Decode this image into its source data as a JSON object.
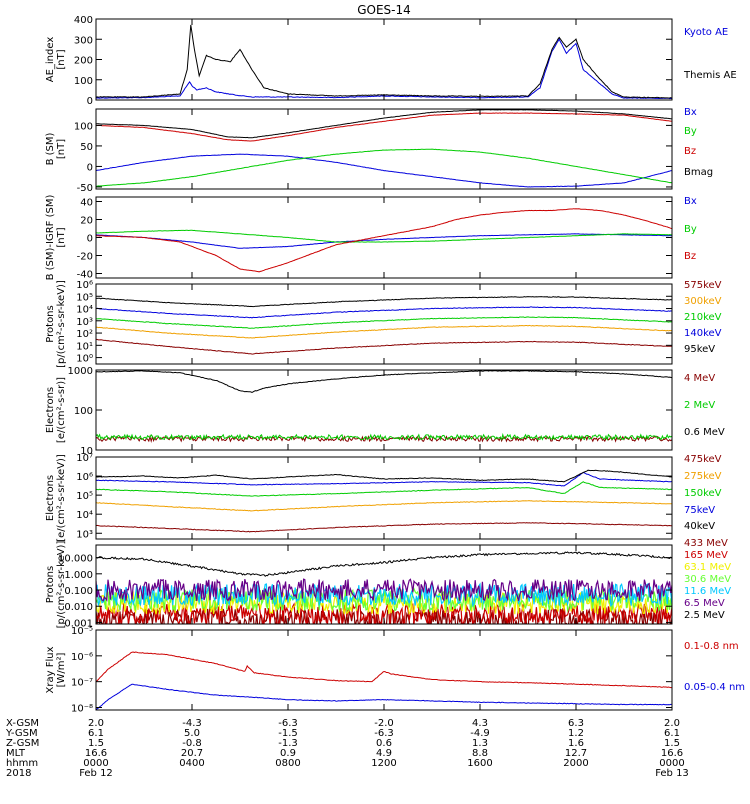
{
  "figure_title": "GOES-14",
  "colors": {
    "black": "#000000",
    "blue": "#0000dd",
    "red": "#cc0000",
    "green": "#00cc00",
    "orange": "#f0a000",
    "darkred": "#880000",
    "cyan": "#00c8ff",
    "yellow": "#f0f000",
    "purple": "#660088",
    "ltgreen": "#66ff33"
  },
  "chart_data": [
    {
      "type": "line",
      "ylabel": "AE_index [nT]",
      "ylim": [
        0,
        400
      ],
      "yscale": "linear",
      "yticks": [
        0,
        100,
        200,
        300,
        400
      ],
      "ytick_labels": [
        "0",
        "100",
        "200",
        "300",
        "400"
      ],
      "series": [
        {
          "name": "Kyoto AE",
          "color": "#0000dd",
          "x": [
            0,
            2,
            3.5,
            3.9,
            4.0,
            4.2,
            4.6,
            5.0,
            5.8,
            6.5,
            8,
            10,
            12,
            14,
            16,
            18,
            18.5,
            19.0,
            19.3,
            19.6,
            20.0,
            20.3,
            20.8,
            21.5,
            22,
            24
          ],
          "y": [
            10,
            12,
            20,
            90,
            70,
            50,
            60,
            40,
            25,
            15,
            15,
            12,
            20,
            15,
            12,
            15,
            60,
            240,
            300,
            230,
            280,
            150,
            100,
            30,
            10,
            8
          ]
        },
        {
          "name": "Themis AE",
          "color": "#000000",
          "x": [
            0,
            2,
            3.5,
            3.8,
            3.95,
            4.1,
            4.3,
            4.6,
            5.0,
            5.6,
            6.0,
            6.5,
            7,
            8,
            10,
            12,
            14,
            16,
            18,
            18.5,
            19.0,
            19.3,
            19.6,
            20.0,
            20.3,
            20.8,
            21.5,
            22,
            24
          ],
          "y": [
            15,
            15,
            30,
            150,
            370,
            250,
            120,
            220,
            200,
            190,
            250,
            150,
            60,
            30,
            20,
            25,
            20,
            18,
            20,
            80,
            250,
            310,
            260,
            300,
            200,
            130,
            40,
            15,
            10
          ]
        }
      ]
    },
    {
      "type": "line",
      "ylabel": "B (SM) [nT]",
      "ylim": [
        -55,
        140
      ],
      "yscale": "linear",
      "yticks": [
        -50,
        0,
        50,
        100
      ],
      "ytick_labels": [
        "-50",
        "0",
        "50",
        "100"
      ],
      "series": [
        {
          "name": "Bx",
          "color": "#0000dd",
          "x": [
            0,
            2,
            4,
            6,
            8,
            10,
            12,
            14,
            16,
            18,
            20,
            22,
            24
          ],
          "y": [
            -10,
            10,
            25,
            30,
            25,
            10,
            -10,
            -25,
            -40,
            -50,
            -48,
            -40,
            -10
          ]
        },
        {
          "name": "By",
          "color": "#00cc00",
          "x": [
            0,
            2,
            4,
            6,
            8,
            10,
            12,
            14,
            16,
            18,
            20,
            22,
            24
          ],
          "y": [
            -48,
            -40,
            -25,
            -5,
            15,
            30,
            40,
            42,
            35,
            20,
            0,
            -20,
            -40
          ]
        },
        {
          "name": "Bz",
          "color": "#cc0000",
          "x": [
            0,
            2,
            4,
            5.5,
            6.5,
            8,
            10,
            12,
            14,
            16,
            18,
            20,
            22,
            24
          ],
          "y": [
            100,
            95,
            80,
            65,
            62,
            75,
            95,
            110,
            125,
            130,
            130,
            128,
            125,
            110
          ]
        },
        {
          "name": "Bmag",
          "color": "#000000",
          "x": [
            0,
            2,
            4,
            5.5,
            6.5,
            8,
            10,
            12,
            14,
            16,
            18,
            20,
            22,
            24
          ],
          "y": [
            104,
            100,
            90,
            72,
            70,
            82,
            100,
            118,
            132,
            138,
            138,
            135,
            128,
            116
          ]
        }
      ]
    },
    {
      "type": "line",
      "ylabel": "B (SM)-IGRF (SM) [nT]",
      "ylim": [
        -45,
        45
      ],
      "yscale": "linear",
      "yticks": [
        -40,
        -20,
        0,
        20,
        40
      ],
      "ytick_labels": [
        "-40",
        "-20",
        "0",
        "20",
        "40"
      ],
      "series": [
        {
          "name": "Bx",
          "color": "#0000dd",
          "x": [
            0,
            2,
            4,
            6,
            8,
            10,
            12,
            14,
            16,
            18,
            20,
            22,
            24
          ],
          "y": [
            3,
            0,
            -5,
            -12,
            -10,
            -5,
            -2,
            0,
            2,
            3,
            4,
            3,
            2
          ]
        },
        {
          "name": "By",
          "color": "#00cc00",
          "x": [
            0,
            2,
            4,
            6,
            8,
            10,
            12,
            14,
            16,
            18,
            20,
            22,
            24
          ],
          "y": [
            5,
            7,
            8,
            4,
            0,
            -5,
            -5,
            -4,
            -2,
            0,
            2,
            4,
            3
          ]
        },
        {
          "name": "Bz",
          "color": "#cc0000",
          "x": [
            0,
            2,
            3.5,
            5,
            6.0,
            6.8,
            8,
            10,
            12,
            14,
            15,
            16,
            17,
            18,
            19,
            20,
            21,
            22,
            23,
            24
          ],
          "y": [
            2,
            0,
            -5,
            -20,
            -35,
            -38,
            -28,
            -8,
            2,
            12,
            20,
            25,
            28,
            30,
            30,
            32,
            30,
            25,
            18,
            10
          ]
        }
      ]
    },
    {
      "type": "line",
      "ylabel": "Protons [p/(cm²-s-sr-keV)]",
      "ylim": [
        0.3,
        1000000
      ],
      "yscale": "log",
      "yticks": [
        1,
        10,
        100,
        1000,
        10000,
        100000,
        1000000
      ],
      "ytick_labels": [
        "10⁰",
        "10¹",
        "10²",
        "10³",
        "10⁴",
        "10⁵",
        "10⁶"
      ],
      "series": [
        {
          "name": "575keV",
          "color": "#880000",
          "x": [
            0,
            3,
            6.5,
            10,
            14,
            18,
            20,
            24
          ],
          "y": [
            30,
            8,
            2,
            6,
            15,
            20,
            18,
            8
          ]
        },
        {
          "name": "300keV",
          "color": "#f0a000",
          "x": [
            0,
            3,
            6.5,
            10,
            14,
            18,
            20,
            24
          ],
          "y": [
            300,
            100,
            40,
            120,
            300,
            400,
            350,
            150
          ]
        },
        {
          "name": "210keV",
          "color": "#00cc00",
          "x": [
            0,
            3,
            6.5,
            10,
            14,
            18,
            20,
            24
          ],
          "y": [
            1500,
            600,
            250,
            700,
            1500,
            2000,
            1800,
            800
          ]
        },
        {
          "name": "140keV",
          "color": "#0000dd",
          "x": [
            0,
            3,
            6.5,
            10,
            14,
            18,
            20,
            24
          ],
          "y": [
            10000,
            4000,
            1800,
            5000,
            10000,
            13000,
            12000,
            6000
          ]
        },
        {
          "name": "95keV",
          "color": "#000000",
          "x": [
            0,
            3,
            6.5,
            10,
            14,
            18,
            20,
            24
          ],
          "y": [
            70000,
            30000,
            15000,
            35000,
            70000,
            90000,
            85000,
            50000
          ]
        }
      ]
    },
    {
      "type": "line",
      "ylabel": "Electrons [e/(cm²-s-sr)]",
      "ylim": [
        10,
        1000
      ],
      "yscale": "log",
      "yticks": [
        10,
        100,
        1000
      ],
      "ytick_labels": [
        "10",
        "100",
        "1000"
      ],
      "series": [
        {
          "name": "4 MeV",
          "color": "#880000",
          "x": [
            0,
            24
          ],
          "y": [
            19,
            19
          ]
        },
        {
          "name": "2 MeV",
          "color": "#00cc00",
          "x": [
            0,
            24
          ],
          "y": [
            21,
            21
          ]
        },
        {
          "name": "0.6 MeV",
          "color": "#000000",
          "x": [
            0,
            2,
            3.5,
            5,
            6.0,
            6.5,
            7,
            8,
            10,
            12,
            14,
            16,
            18,
            20,
            22,
            24
          ],
          "y": [
            900,
            950,
            850,
            550,
            300,
            280,
            350,
            450,
            600,
            750,
            850,
            950,
            950,
            900,
            800,
            650
          ]
        }
      ]
    },
    {
      "type": "line",
      "ylabel": "Electrons [e/(cm²-s-sr-keV)]",
      "ylim": [
        500,
        10000000
      ],
      "yscale": "log",
      "yticks": [
        1000,
        10000,
        100000,
        1000000,
        10000000
      ],
      "ytick_labels": [
        "10³",
        "10⁴",
        "10⁵",
        "10⁶",
        "10⁷"
      ],
      "series": [
        {
          "name": "475keV",
          "color": "#880000",
          "x": [
            0,
            3,
            6.5,
            10,
            14,
            18,
            20,
            24
          ],
          "y": [
            2500,
            1800,
            1200,
            2000,
            3000,
            3500,
            3200,
            2500
          ]
        },
        {
          "name": "275keV",
          "color": "#f0a000",
          "x": [
            0,
            3,
            6.5,
            10,
            14,
            18,
            20,
            24
          ],
          "y": [
            40000,
            25000,
            15000,
            25000,
            40000,
            50000,
            45000,
            35000
          ]
        },
        {
          "name": "150keV",
          "color": "#00cc00",
          "x": [
            0,
            3,
            6.5,
            10,
            14,
            18,
            19.5,
            20.3,
            21,
            24
          ],
          "y": [
            200000,
            150000,
            90000,
            120000,
            180000,
            250000,
            120000,
            500000,
            250000,
            200000
          ]
        },
        {
          "name": "75keV",
          "color": "#0000dd",
          "x": [
            0,
            3,
            6.5,
            10,
            14,
            18,
            19.5,
            20.3,
            21,
            24
          ],
          "y": [
            600000,
            500000,
            350000,
            400000,
            500000,
            450000,
            300000,
            1500000,
            700000,
            500000
          ]
        },
        {
          "name": "40keV",
          "color": "#000000",
          "x": [
            0,
            2,
            3.5,
            5,
            6.5,
            8,
            10,
            12,
            14,
            16,
            18,
            19.5,
            20.5,
            21.5,
            24
          ],
          "y": [
            900000,
            1000000,
            800000,
            1100000,
            700000,
            900000,
            1200000,
            700000,
            800000,
            600000,
            700000,
            500000,
            2000000,
            1800000,
            900000
          ]
        }
      ]
    },
    {
      "type": "line",
      "ylabel": "Protons [p/(cm²-s-sr-keV)]",
      "ylim": [
        0.0008,
        60
      ],
      "yscale": "log",
      "yticks": [
        0.001,
        0.01,
        0.1,
        1,
        10
      ],
      "ytick_labels": [
        "0.001",
        "0.010",
        "0.100",
        "1.000",
        "10.000"
      ],
      "series": [
        {
          "name": "433 MeV",
          "color": "#880000",
          "x": [
            0,
            24
          ],
          "y": [
            0.0015,
            0.0015
          ]
        },
        {
          "name": "165 MeV",
          "color": "#cc0000",
          "x": [
            0,
            24
          ],
          "y": [
            0.003,
            0.003
          ]
        },
        {
          "name": "63.1 MeV",
          "color": "#f0f000",
          "x": [
            0,
            24
          ],
          "y": [
            0.015,
            0.015
          ]
        },
        {
          "name": "30.6 MeV",
          "color": "#66ff33",
          "x": [
            0,
            24
          ],
          "y": [
            0.025,
            0.025
          ]
        },
        {
          "name": "11.6 MeV",
          "color": "#00c8ff",
          "x": [
            0,
            24
          ],
          "y": [
            0.05,
            0.05
          ]
        },
        {
          "name": "6.5 MeV",
          "color": "#660088",
          "x": [
            0,
            24
          ],
          "y": [
            0.1,
            0.1
          ]
        },
        {
          "name": "2.5 MeV",
          "color": "#000000",
          "x": [
            0,
            2,
            4,
            6,
            7,
            8,
            10,
            12,
            14,
            16,
            18,
            20,
            22,
            24
          ],
          "y": [
            10,
            8,
            3,
            1,
            0.8,
            1.2,
            3,
            5,
            10,
            15,
            18,
            20,
            15,
            10
          ]
        }
      ]
    },
    {
      "type": "line",
      "ylabel": "Xray Flux [W/m²]",
      "ylim": [
        8e-09,
        1e-05
      ],
      "yscale": "log",
      "yticks": [
        1e-08,
        1e-07,
        1e-06,
        1e-05
      ],
      "ytick_labels": [
        "10⁻⁸",
        "10⁻⁷",
        "10⁻⁶",
        "10⁻⁵"
      ],
      "series": [
        {
          "name": "0.1-0.8 nm",
          "color": "#cc0000",
          "x": [
            0,
            0.5,
            1.5,
            3,
            5,
            6.2,
            6.3,
            6.6,
            8,
            10,
            11.5,
            12,
            12.3,
            14,
            16,
            18,
            20,
            22,
            24
          ],
          "y": [
            1e-07,
            3e-07,
            1.4e-06,
            1.1e-06,
            5e-07,
            2.5e-07,
            4e-07,
            2.2e-07,
            1.5e-07,
            1.1e-07,
            1e-07,
            2.5e-07,
            2e-07,
            1.2e-07,
            1e-07,
            9e-08,
            8e-08,
            7e-08,
            6e-08
          ]
        },
        {
          "name": "0.05-0.4 nm",
          "color": "#0000dd",
          "x": [
            0,
            0.5,
            1.5,
            3,
            5,
            6.5,
            8,
            10,
            12,
            14,
            16,
            18,
            20,
            22,
            24
          ],
          "y": [
            8e-09,
            2e-08,
            8e-08,
            5e-08,
            3e-08,
            2.5e-08,
            2e-08,
            1.8e-08,
            2e-08,
            1.8e-08,
            1.6e-08,
            1.5e-08,
            1.4e-08,
            1.3e-08,
            1.3e-08
          ]
        }
      ]
    }
  ],
  "x_axis": {
    "positions": [
      0,
      4,
      8,
      12,
      16,
      20,
      24
    ],
    "rows": [
      {
        "label": "X-GSM",
        "values": [
          "2.0",
          "-4.3",
          "-6.3",
          "-2.0",
          "4.3",
          "6.3",
          "2.0"
        ]
      },
      {
        "label": "Y-GSM",
        "values": [
          "6.1",
          "5.0",
          "-1.5",
          "-6.3",
          "-4.9",
          "1.2",
          "6.1"
        ]
      },
      {
        "label": "Z-GSM",
        "values": [
          "1.5",
          "-0.8",
          "-1.3",
          "0.6",
          "1.3",
          "1.6",
          "1.5"
        ]
      },
      {
        "label": "MLT",
        "values": [
          "16.6",
          "20.7",
          "0.9",
          "4.9",
          "8.8",
          "12.7",
          "16.6"
        ]
      },
      {
        "label": "hhmm",
        "values": [
          "0000",
          "0400",
          "0800",
          "1200",
          "1600",
          "2000",
          "0000"
        ]
      }
    ],
    "year_label": "2018",
    "date_start": "Feb 12",
    "date_end": "Feb 13"
  }
}
